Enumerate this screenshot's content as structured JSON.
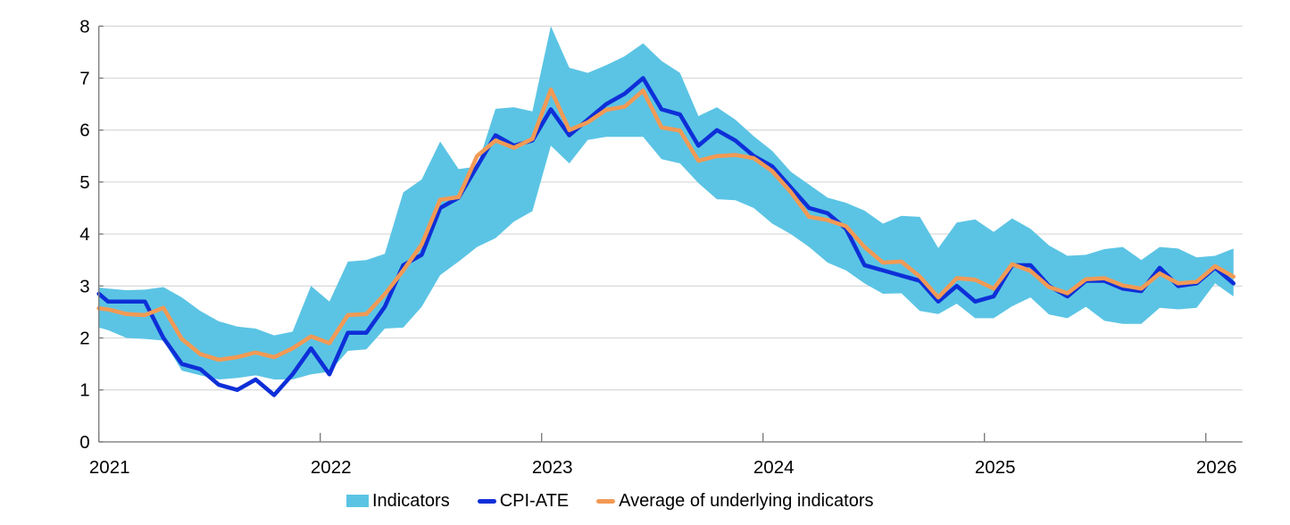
{
  "chart_data": {
    "type": "area",
    "title": "",
    "xlabel": "",
    "ylabel": "",
    "grid": true,
    "x_axis": {
      "tick_labels": [
        "2021",
        "2022",
        "2023",
        "2024",
        "2025",
        "2026"
      ],
      "range_note": "monthly data from Jan 2021 to Feb 2026, first point clipped at left axis"
    },
    "y_axis": {
      "min": 0,
      "max": 8,
      "tick_step": 1,
      "tick_labels": [
        "0",
        "1",
        "2",
        "3",
        "4",
        "5",
        "6",
        "7",
        "8"
      ]
    },
    "legend_position": "bottom-center",
    "months": [
      "2020-12-edge",
      "2021-01",
      "2021-02",
      "2021-03",
      "2021-04",
      "2021-05",
      "2021-06",
      "2021-07",
      "2021-08",
      "2021-09",
      "2021-10",
      "2021-11",
      "2021-12",
      "2022-01",
      "2022-02",
      "2022-03",
      "2022-04",
      "2022-05",
      "2022-06",
      "2022-07",
      "2022-08",
      "2022-09",
      "2022-10",
      "2022-11",
      "2022-12",
      "2023-01",
      "2023-02",
      "2023-03",
      "2023-04",
      "2023-05",
      "2023-06",
      "2023-07",
      "2023-08",
      "2023-09",
      "2023-10",
      "2023-11",
      "2023-12",
      "2024-01",
      "2024-02",
      "2024-03",
      "2024-04",
      "2024-05",
      "2024-06",
      "2024-07",
      "2024-08",
      "2024-09",
      "2024-10",
      "2024-11",
      "2024-12",
      "2025-01",
      "2025-02",
      "2025-03",
      "2025-04",
      "2025-05",
      "2025-06",
      "2025-07",
      "2025-08",
      "2025-09",
      "2025-10",
      "2025-11",
      "2025-12",
      "2026-01",
      "2026-02"
    ],
    "series": [
      {
        "name": "Indicators",
        "type": "band",
        "color": "#5BC4E4",
        "upper": [
          2.97,
          2.95,
          2.92,
          2.93,
          2.98,
          2.78,
          2.52,
          2.32,
          2.22,
          2.18,
          2.05,
          2.12,
          3.0,
          2.7,
          3.47,
          3.5,
          3.62,
          4.8,
          5.05,
          5.78,
          5.25,
          5.3,
          6.41,
          6.44,
          6.36,
          8.0,
          7.2,
          7.1,
          7.25,
          7.42,
          7.67,
          7.33,
          7.1,
          6.27,
          6.44,
          6.2,
          5.88,
          5.6,
          5.2,
          4.95,
          4.7,
          4.6,
          4.45,
          4.2,
          4.35,
          4.33,
          3.73,
          4.22,
          4.28,
          4.04,
          4.3,
          4.1,
          3.78,
          3.58,
          3.6,
          3.71,
          3.75,
          3.5,
          3.75,
          3.72,
          3.55,
          3.58,
          3.72
        ],
        "lower": [
          2.2,
          2.15,
          2.0,
          1.98,
          1.95,
          1.37,
          1.28,
          1.2,
          1.23,
          1.28,
          1.2,
          1.2,
          1.3,
          1.35,
          1.75,
          1.78,
          2.18,
          2.2,
          2.6,
          3.21,
          3.47,
          3.75,
          3.92,
          4.24,
          4.44,
          5.7,
          5.36,
          5.81,
          5.87,
          5.87,
          5.87,
          5.44,
          5.36,
          4.98,
          4.67,
          4.65,
          4.5,
          4.2,
          4.0,
          3.75,
          3.45,
          3.3,
          3.05,
          2.85,
          2.86,
          2.52,
          2.46,
          2.66,
          2.38,
          2.38,
          2.61,
          2.78,
          2.45,
          2.38,
          2.6,
          2.33,
          2.27,
          2.27,
          2.58,
          2.55,
          2.58,
          3.05,
          2.8
        ]
      },
      {
        "name": "CPI-ATE",
        "type": "line",
        "color": "#0E2FD8",
        "values": [
          2.85,
          2.7,
          2.7,
          2.7,
          2.0,
          1.5,
          1.4,
          1.1,
          1.0,
          1.2,
          0.9,
          1.3,
          1.8,
          1.3,
          2.1,
          2.1,
          2.6,
          3.4,
          3.6,
          4.5,
          4.7,
          5.3,
          5.9,
          5.7,
          5.8,
          6.4,
          5.9,
          6.2,
          6.5,
          6.7,
          7.0,
          6.4,
          6.3,
          5.7,
          6.0,
          5.8,
          5.5,
          5.3,
          4.9,
          4.5,
          4.4,
          4.1,
          3.4,
          3.3,
          3.2,
          3.1,
          2.7,
          3.0,
          2.7,
          2.8,
          3.4,
          3.4,
          3.0,
          2.8,
          3.1,
          3.1,
          2.95,
          2.9,
          3.35,
          3.0,
          3.05,
          3.35,
          3.05
        ]
      },
      {
        "name": "Average of underlying indicators",
        "type": "line",
        "color": "#F19A55",
        "values": [
          2.57,
          2.55,
          2.46,
          2.44,
          2.58,
          1.98,
          1.69,
          1.58,
          1.63,
          1.72,
          1.63,
          1.8,
          2.03,
          1.9,
          2.44,
          2.46,
          2.84,
          3.3,
          3.8,
          4.66,
          4.71,
          5.5,
          5.8,
          5.66,
          5.83,
          6.78,
          6.0,
          6.15,
          6.39,
          6.45,
          6.76,
          6.05,
          5.99,
          5.41,
          5.5,
          5.52,
          5.46,
          5.21,
          4.81,
          4.33,
          4.27,
          4.15,
          3.75,
          3.45,
          3.47,
          3.18,
          2.78,
          3.15,
          3.12,
          2.95,
          3.42,
          3.29,
          2.98,
          2.86,
          3.13,
          3.15,
          3.01,
          2.95,
          3.24,
          3.05,
          3.08,
          3.38,
          3.18
        ]
      }
    ],
    "colors": {
      "band": "#5BC4E4",
      "cpi_ate_line": "#0E2FD8",
      "average_line": "#F19A55",
      "gridline": "#DBDBDB",
      "axis": "#7F7F7F",
      "text": "#000000"
    }
  },
  "legend": {
    "items": [
      {
        "label": "Indicators",
        "swatch": "band-swatch",
        "color": "#5BC4E4"
      },
      {
        "label": "CPI-ATE",
        "swatch": "line-swatch",
        "color": "#0E2FD8"
      },
      {
        "label": "Average of underlying indicators",
        "swatch": "line-swatch",
        "color": "#F19A55"
      }
    ]
  }
}
